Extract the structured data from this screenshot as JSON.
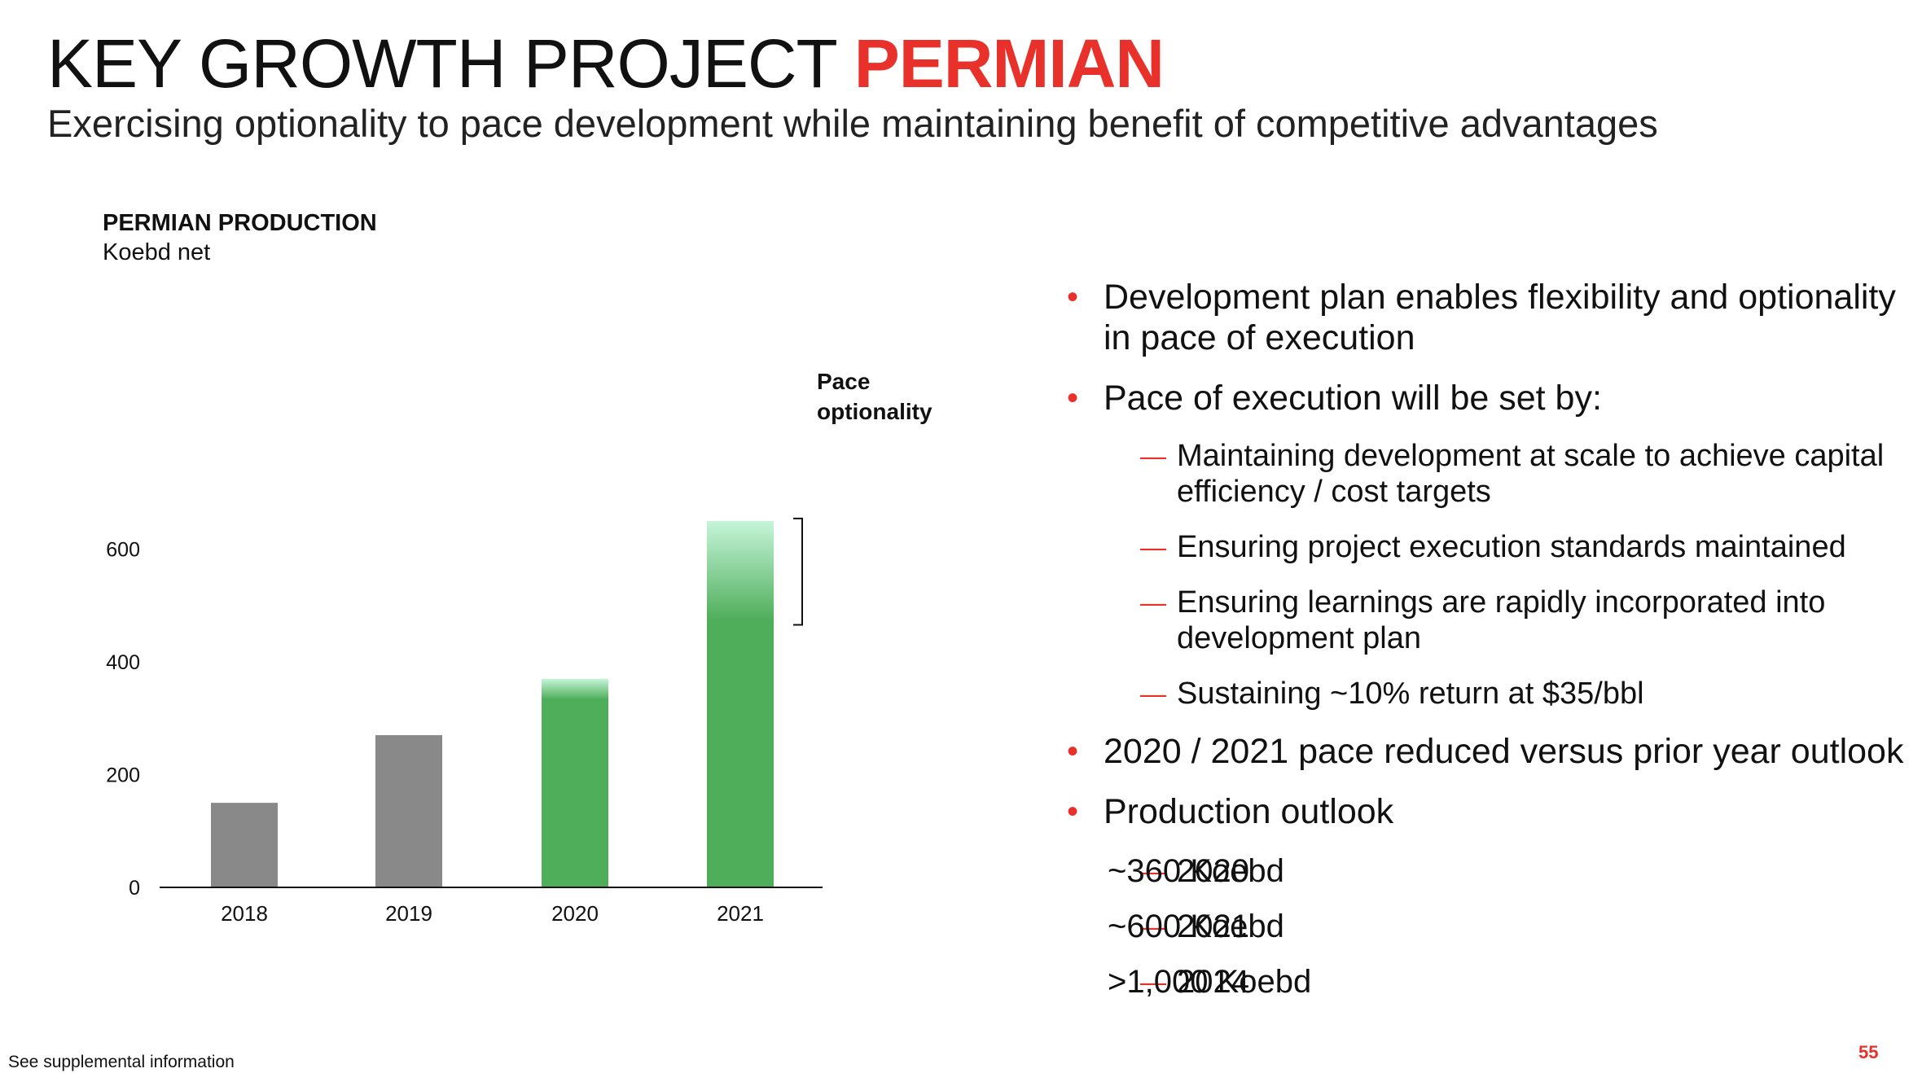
{
  "header": {
    "title_main": "KEY GROWTH PROJECT",
    "title_accent": "PERMIAN",
    "subtitle": "Exercising optionality to pace development while maintaining benefit of competitive advantages"
  },
  "colors": {
    "accent": "#e8312a",
    "bar_actual": "#898989",
    "bar_outlook": "#4fae5a",
    "bar_outlook_light": "#c6f5da"
  },
  "chart_data": {
    "type": "bar",
    "title": "PERMIAN PRODUCTION",
    "subtitle": "Koebd net",
    "categories": [
      "2018",
      "2019",
      "2020",
      "2021"
    ],
    "values": [
      150,
      270,
      370,
      650
    ],
    "firm_values": [
      150,
      270,
      335,
      475
    ],
    "series_styles": [
      "actual",
      "actual",
      "outlook",
      "outlook"
    ],
    "yticks": [
      0,
      200,
      400,
      600
    ],
    "ylim": [
      0,
      650
    ],
    "grid": false,
    "annotation": {
      "label_lines": [
        "Pace",
        "optionality"
      ],
      "range": [
        470,
        650
      ],
      "category": "2021"
    }
  },
  "bullets": [
    {
      "text": "Development plan enables flexibility and optionality in pace of execution"
    },
    {
      "text": "Pace of execution will be set by:",
      "subs": [
        "Maintaining development at scale to achieve capital efficiency / cost targets",
        "Ensuring project execution standards maintained",
        "Ensuring learnings are rapidly incorporated into development plan",
        "Sustaining ~10% return at $35/bbl"
      ]
    },
    {
      "text": "2020 / 2021 pace reduced versus prior year outlook"
    },
    {
      "text": "Production outlook"
    }
  ],
  "outlook": [
    {
      "year": "2020",
      "value": "~360 Koebd"
    },
    {
      "year": "2021",
      "value": "~600 Koebd"
    },
    {
      "year": "2024",
      "value": ">1,000 Koebd"
    }
  ],
  "footer": {
    "note": "See supplemental information",
    "page_number": "55"
  }
}
